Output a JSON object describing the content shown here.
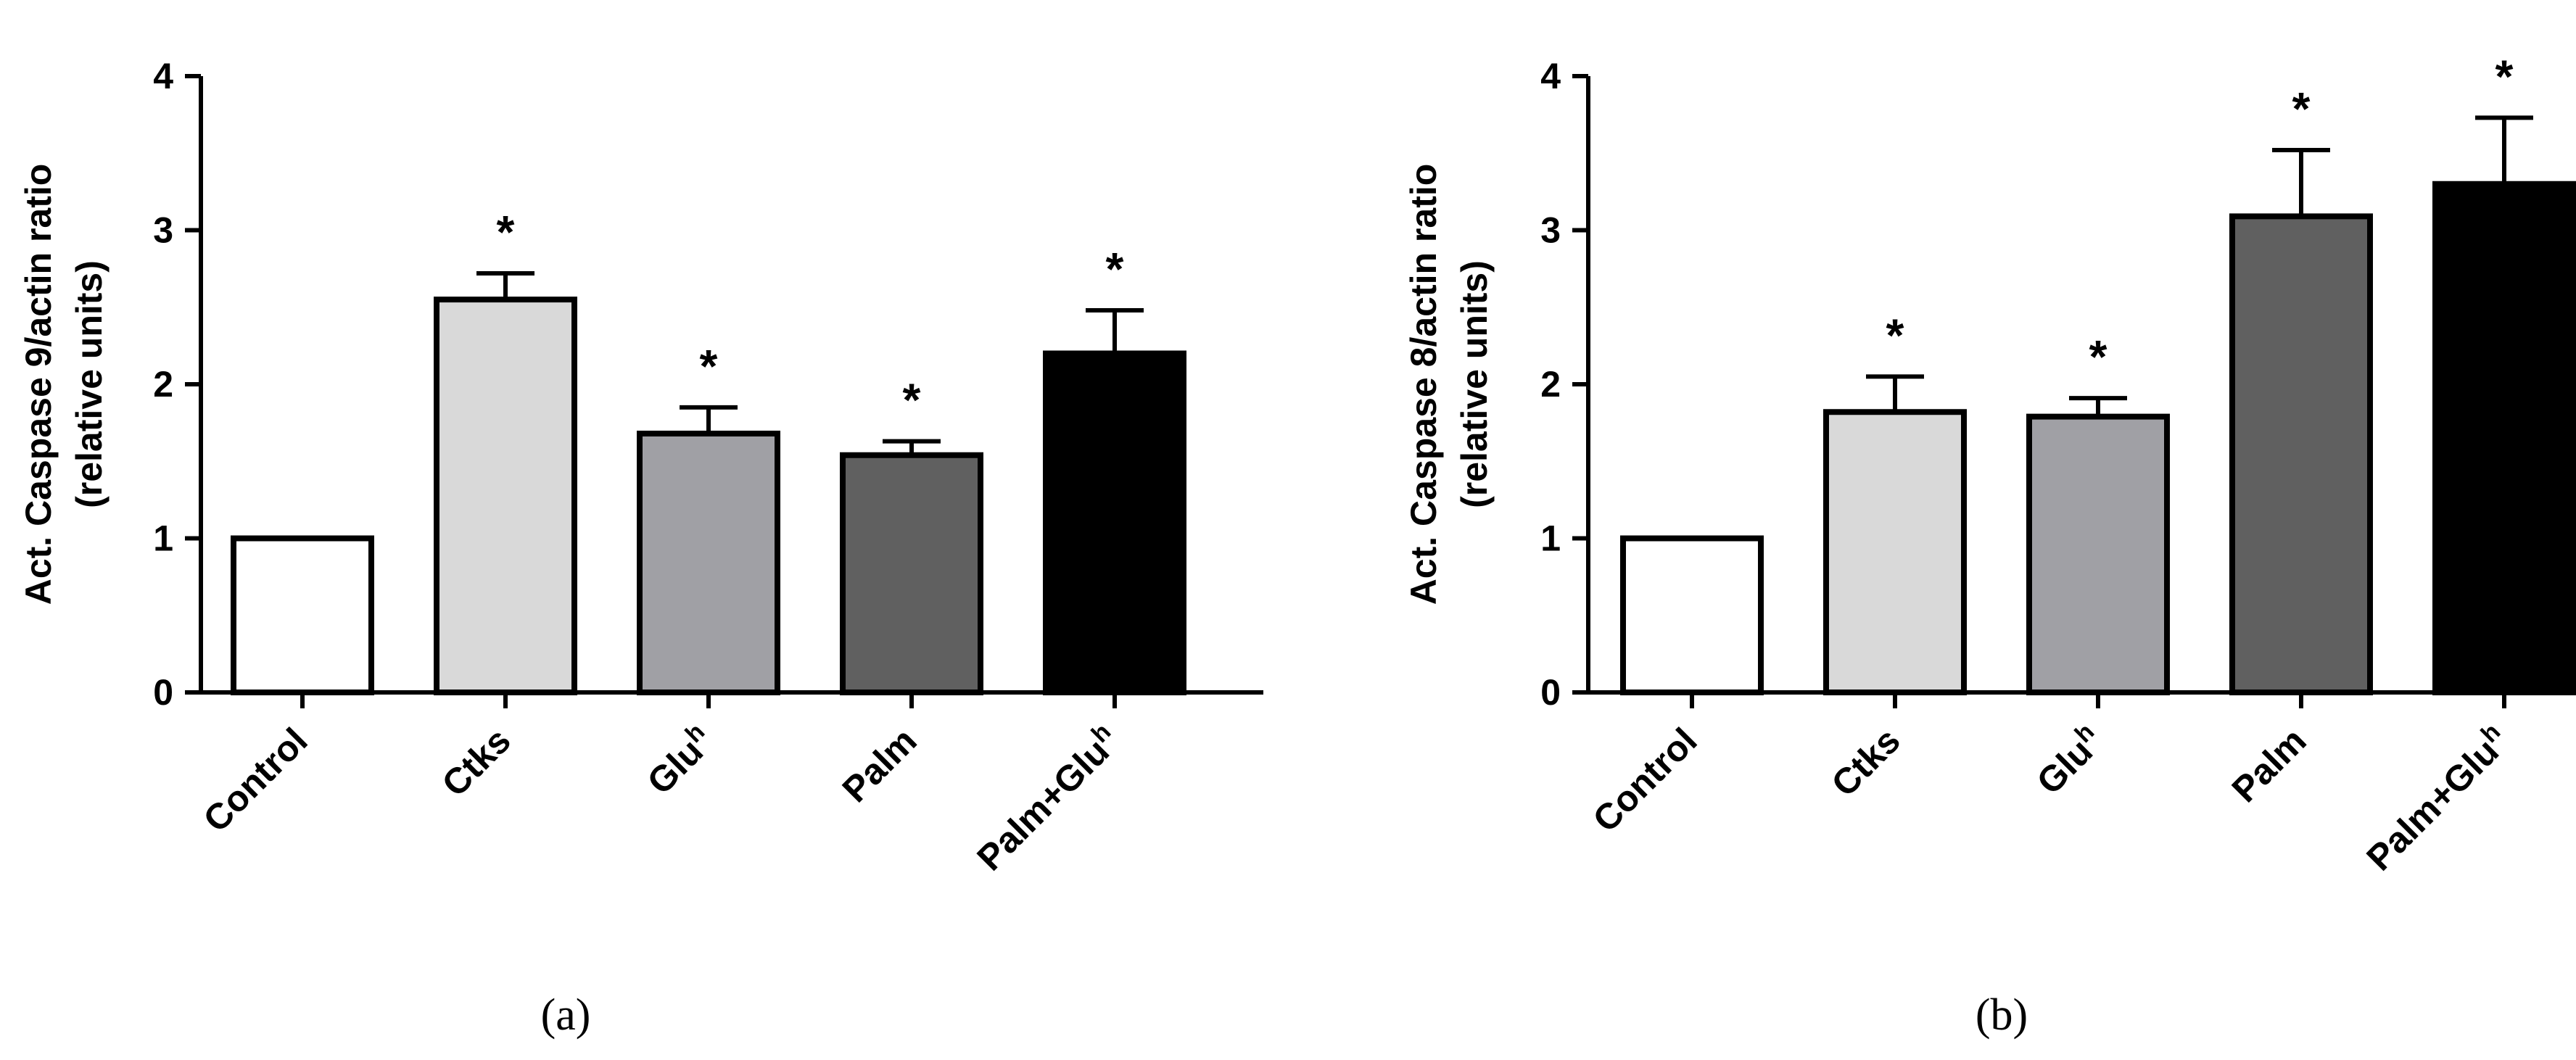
{
  "chart_data": [
    {
      "type": "bar",
      "panel_label": "(a)",
      "ylabel_lines": [
        "Act. Caspase 9/actin ratio",
        "(relative units)"
      ],
      "ylim": [
        0,
        4
      ],
      "yticks": [
        "0",
        "1",
        "2",
        "3",
        "4"
      ],
      "categories": [
        {
          "base": "Control",
          "sup": ""
        },
        {
          "base": "Ctks",
          "sup": ""
        },
        {
          "base": "Glu",
          "sup": "h"
        },
        {
          "base": "Palm",
          "sup": ""
        },
        {
          "base": "Palm+Glu",
          "sup": "h"
        }
      ],
      "values": [
        1.0,
        2.55,
        1.68,
        1.54,
        2.2
      ],
      "errors": [
        0.0,
        0.17,
        0.17,
        0.09,
        0.28
      ],
      "significance": [
        "",
        "*",
        "*",
        "*",
        "*"
      ],
      "colors": [
        "#ffffff",
        "#d9d9d9",
        "#a0a0a5",
        "#606060",
        "#000000"
      ],
      "grid": false,
      "legend": "none"
    },
    {
      "type": "bar",
      "panel_label": "(b)",
      "ylabel_lines": [
        "Act. Caspase 8/actin ratio",
        "(relative units)"
      ],
      "ylim": [
        0,
        4
      ],
      "yticks": [
        "0",
        "1",
        "2",
        "3",
        "4"
      ],
      "categories": [
        {
          "base": "Control",
          "sup": ""
        },
        {
          "base": "Ctks",
          "sup": ""
        },
        {
          "base": "Glu",
          "sup": "h"
        },
        {
          "base": "Palm",
          "sup": ""
        },
        {
          "base": "Palm+Glu",
          "sup": "h"
        }
      ],
      "values": [
        1.0,
        1.82,
        1.79,
        3.09,
        3.3
      ],
      "errors": [
        0.0,
        0.23,
        0.12,
        0.43,
        0.43
      ],
      "significance": [
        "",
        "*",
        "*",
        "*",
        "*"
      ],
      "colors": [
        "#ffffff",
        "#d9d9d9",
        "#a0a0a5",
        "#606060",
        "#000000"
      ],
      "grid": false,
      "legend": "none"
    }
  ]
}
